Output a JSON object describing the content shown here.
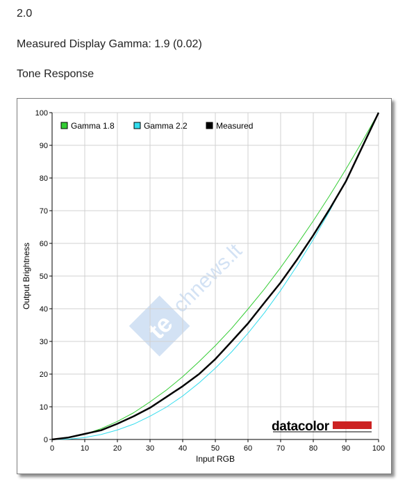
{
  "page": {
    "line1": "2.0",
    "line2": "Measured Display Gamma: 1.9 (0.02)",
    "line3": "Tone Response"
  },
  "watermark": "technews.lt",
  "logo": "datacolor",
  "colors": {
    "gamma18": "#33cc33",
    "gamma22": "#33ddee",
    "measured": "#000000",
    "grid": "#d0d0d0",
    "logo_bar": "#cc2222"
  },
  "chart_data": {
    "type": "line",
    "xlabel": "Input RGB",
    "ylabel": "Output Brightness",
    "xlim": [
      0,
      100
    ],
    "ylim": [
      0,
      100
    ],
    "xticks": [
      0,
      10,
      20,
      30,
      40,
      50,
      60,
      70,
      80,
      90,
      100
    ],
    "yticks": [
      0,
      10,
      20,
      30,
      40,
      50,
      60,
      70,
      80,
      90,
      100
    ],
    "grid": true,
    "legend_position": "top-left",
    "x": [
      0,
      5,
      10,
      15,
      20,
      25,
      30,
      35,
      40,
      45,
      50,
      55,
      60,
      65,
      70,
      75,
      80,
      85,
      90,
      95,
      100
    ],
    "series": [
      {
        "name": "Gamma 1.8",
        "color": "#33cc33",
        "width": 1,
        "values": [
          0,
          0.5,
          1.6,
          3.3,
          5.5,
          8.2,
          11.5,
          15.1,
          19.2,
          23.8,
          28.7,
          34.0,
          39.9,
          46.0,
          52.6,
          59.6,
          66.9,
          74.6,
          82.7,
          91.2,
          100
        ]
      },
      {
        "name": "Gamma 2.2",
        "color": "#33ddee",
        "width": 1,
        "values": [
          0,
          0.1,
          0.6,
          1.5,
          2.9,
          4.7,
          7.1,
          9.9,
          13.3,
          17.3,
          21.8,
          26.8,
          32.5,
          38.7,
          45.6,
          53.1,
          61.2,
          69.9,
          79.3,
          89.3,
          100
        ]
      },
      {
        "name": "Measured",
        "color": "#000000",
        "width": 2.5,
        "values": [
          0,
          0.6,
          1.7,
          2.8,
          4.8,
          7.1,
          9.7,
          13.0,
          16.3,
          20.0,
          24.6,
          30.0,
          35.5,
          41.8,
          48.0,
          55.0,
          62.5,
          70.5,
          79.0,
          89.5,
          100
        ]
      }
    ]
  }
}
